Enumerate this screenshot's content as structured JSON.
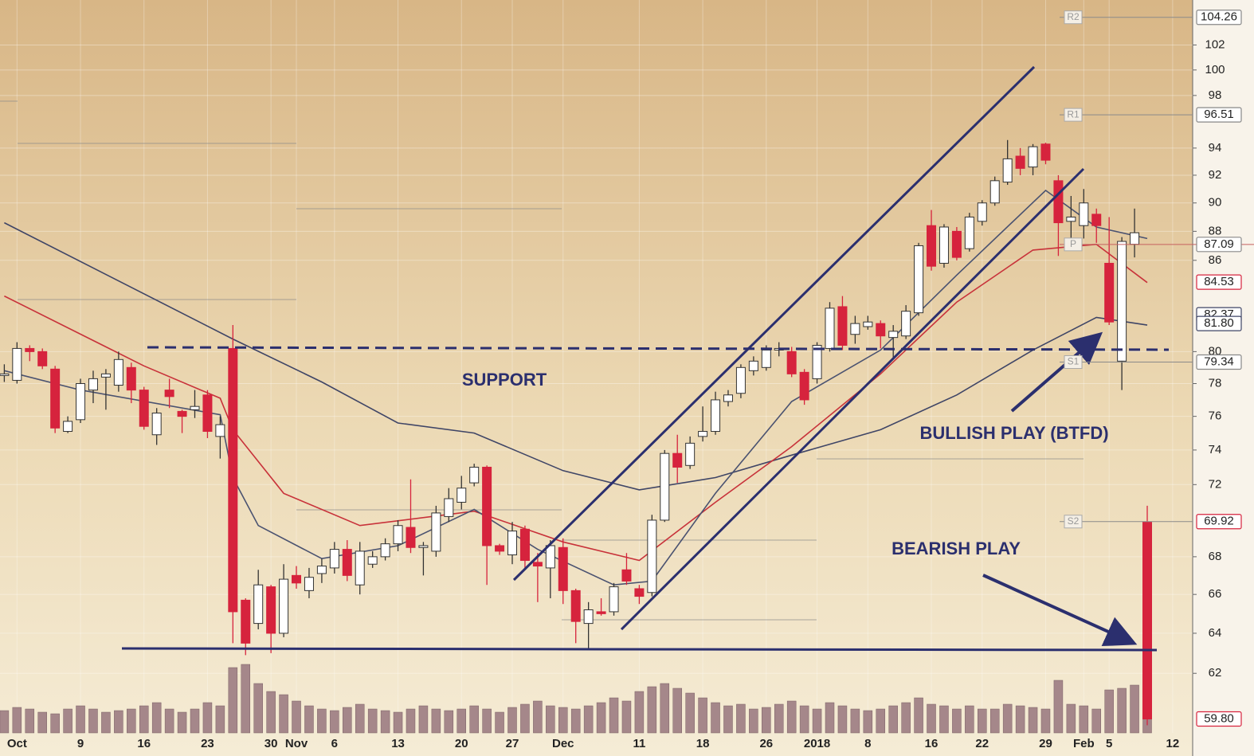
{
  "chart_data": {
    "type": "candlestick",
    "categories": [
      null,
      "Oct",
      null,
      null,
      null,
      null,
      "9",
      null,
      null,
      null,
      null,
      "16",
      null,
      null,
      null,
      null,
      "23",
      null,
      null,
      null,
      null,
      "30",
      null,
      "Nov",
      null,
      null,
      "6",
      null,
      null,
      null,
      null,
      "13",
      null,
      null,
      null,
      null,
      "20",
      null,
      null,
      null,
      "27",
      null,
      null,
      null,
      "Dec",
      null,
      null,
      null,
      null,
      null,
      "11",
      null,
      null,
      null,
      null,
      "18",
      null,
      null,
      null,
      null,
      "26",
      null,
      null,
      null,
      "2018",
      null,
      null,
      null,
      "8",
      null,
      null,
      null,
      null,
      "16",
      null,
      null,
      null,
      "22",
      null,
      null,
      null,
      null,
      "29",
      null,
      null,
      "Feb",
      null,
      "5",
      null,
      null,
      null,
      null,
      "12"
    ],
    "open": [
      78.5,
      78.2,
      80.2,
      80.0,
      78.9,
      75.1,
      75.8,
      77.6,
      78.4,
      77.9,
      79.0,
      77.6,
      74.9,
      77.6,
      76.3,
      76.4,
      77.3,
      74.8,
      80.2,
      65.7,
      64.5,
      66.4,
      64.0,
      67.0,
      66.2,
      67.1,
      67.4,
      68.4,
      66.5,
      67.6,
      68.0,
      68.7,
      69.6,
      68.5,
      68.3,
      70.2,
      71.0,
      72.1,
      73.0,
      68.6,
      68.1,
      69.5,
      67.7,
      67.4,
      68.5,
      66.2,
      64.5,
      65.1,
      65.1,
      67.3,
      66.3,
      66.1,
      70.0,
      73.8,
      73.1,
      74.8,
      75.1,
      76.9,
      77.4,
      78.8,
      79.0,
      80.1,
      80.0,
      78.7,
      78.3,
      80.2,
      82.9,
      81.1,
      81.6,
      81.8,
      80.9,
      81.0,
      82.5,
      88.4,
      85.8,
      88.0,
      86.8,
      88.7,
      90.0,
      91.5,
      93.4,
      92.6,
      94.3,
      91.6,
      88.7,
      88.4,
      89.2,
      85.8,
      79.4,
      87.1,
      69.9,
      null,
      null
    ],
    "high": [
      79.2,
      80.6,
      80.4,
      80.2,
      79.1,
      76.0,
      78.3,
      78.8,
      78.9,
      80.0,
      79.3,
      77.8,
      76.5,
      78.3,
      76.4,
      77.6,
      77.6,
      76.0,
      81.7,
      65.8,
      67.3,
      66.5,
      67.6,
      67.5,
      67.4,
      67.9,
      68.8,
      68.9,
      68.8,
      68.3,
      69.0,
      70.0,
      72.3,
      68.8,
      70.8,
      71.8,
      72.5,
      73.2,
      73.1,
      68.7,
      69.9,
      69.7,
      68.2,
      68.9,
      69.0,
      66.3,
      65.6,
      65.8,
      66.6,
      68.2,
      66.5,
      70.3,
      74.0,
      74.9,
      74.8,
      76.6,
      77.5,
      77.6,
      79.2,
      79.7,
      80.4,
      80.6,
      80.3,
      78.9,
      80.6,
      83.2,
      83.6,
      82.3,
      82.3,
      82.0,
      81.7,
      83.0,
      87.2,
      89.5,
      88.5,
      88.3,
      89.3,
      90.2,
      91.9,
      94.6,
      94.0,
      94.3,
      94.4,
      92.0,
      90.5,
      91.0,
      89.6,
      89.0,
      87.6,
      89.6,
      70.8,
      null,
      null
    ],
    "low": [
      78.1,
      78.0,
      79.4,
      78.9,
      75.0,
      75.0,
      75.6,
      76.8,
      76.4,
      77.5,
      76.8,
      75.2,
      74.3,
      76.5,
      75.0,
      75.9,
      74.7,
      73.5,
      63.5,
      62.9,
      64.2,
      63.0,
      63.8,
      66.3,
      65.8,
      66.6,
      67.1,
      66.7,
      66.0,
      67.4,
      67.8,
      68.3,
      68.2,
      67.0,
      68.0,
      69.9,
      70.6,
      71.9,
      66.5,
      68.1,
      67.6,
      67.3,
      65.6,
      65.8,
      65.5,
      63.5,
      63.2,
      64.9,
      64.9,
      66.5,
      65.5,
      65.9,
      69.9,
      72.1,
      72.9,
      74.5,
      74.9,
      76.6,
      77.1,
      78.5,
      78.8,
      79.7,
      78.4,
      76.7,
      78.0,
      80.0,
      80.1,
      80.5,
      81.4,
      80.2,
      79.6,
      80.8,
      82.3,
      85.3,
      85.5,
      86.0,
      86.6,
      88.4,
      89.8,
      91.3,
      92.0,
      92.0,
      92.8,
      86.3,
      87.1,
      87.5,
      87.2,
      81.7,
      77.6,
      86.2,
      59.5,
      null,
      null
    ],
    "close": [
      78.6,
      80.2,
      80.0,
      79.1,
      75.3,
      75.7,
      78.0,
      78.3,
      78.6,
      79.5,
      77.6,
      75.4,
      76.2,
      77.2,
      76.0,
      76.6,
      75.1,
      75.5,
      65.1,
      63.5,
      66.5,
      64.0,
      66.8,
      66.6,
      66.9,
      67.5,
      68.4,
      67.0,
      68.3,
      68.0,
      68.7,
      69.7,
      68.5,
      68.6,
      70.4,
      71.2,
      71.8,
      73.0,
      68.6,
      68.3,
      69.4,
      67.8,
      67.5,
      68.6,
      66.2,
      64.6,
      65.2,
      65.0,
      66.4,
      66.7,
      65.9,
      70.0,
      73.8,
      73.0,
      74.4,
      75.1,
      77.0,
      77.3,
      79.0,
      79.4,
      80.1,
      80.2,
      78.6,
      77.0,
      80.4,
      82.8,
      80.4,
      81.8,
      81.9,
      81.0,
      81.3,
      82.6,
      87.0,
      85.6,
      88.3,
      86.2,
      89.0,
      90.0,
      91.6,
      93.2,
      92.5,
      94.1,
      93.1,
      88.6,
      89.0,
      90.0,
      88.4,
      81.9,
      87.3,
      87.9,
      59.8,
      null,
      null
    ],
    "volume": [
      28,
      32,
      30,
      26,
      24,
      30,
      34,
      30,
      26,
      28,
      30,
      34,
      38,
      30,
      26,
      30,
      38,
      34,
      82,
      86,
      62,
      52,
      48,
      40,
      34,
      30,
      28,
      32,
      36,
      30,
      28,
      26,
      30,
      34,
      30,
      28,
      30,
      34,
      30,
      26,
      32,
      36,
      40,
      34,
      32,
      30,
      34,
      38,
      44,
      40,
      52,
      58,
      62,
      56,
      50,
      44,
      38,
      34,
      36,
      30,
      32,
      36,
      40,
      34,
      30,
      38,
      34,
      30,
      28,
      30,
      34,
      38,
      44,
      36,
      34,
      30,
      34,
      30,
      30,
      36,
      34,
      32,
      30,
      66,
      36,
      34,
      30,
      54,
      56,
      60,
      40,
      null,
      null
    ],
    "vlim": [
      0,
      200
    ],
    "up_color": "#ffffff",
    "down_color": "#d6233d",
    "volume_color": "#a5878a",
    "moving_averages": [
      {
        "color": "#3f4566",
        "x": [
          0,
          18,
          25,
          31,
          37,
          44,
          50,
          56,
          62,
          69,
          75,
          81,
          86,
          90
        ],
        "values": [
          88.6,
          80.8,
          78.1,
          75.6,
          75.0,
          72.8,
          71.7,
          72.4,
          73.7,
          75.2,
          77.3,
          80.1,
          82.2,
          81.7
        ]
      },
      {
        "color": "#c8323a",
        "x": [
          0,
          11,
          17,
          18,
          22,
          28,
          37,
          44,
          50,
          56,
          62,
          69,
          75,
          81,
          86,
          90
        ],
        "values": [
          83.6,
          79.1,
          77.1,
          75.2,
          71.5,
          69.7,
          70.5,
          68.8,
          67.8,
          71.0,
          74.2,
          78.6,
          83.2,
          86.7,
          87.1,
          84.5
        ]
      },
      {
        "color": "#4a5270",
        "x": [
          0,
          6,
          17,
          18,
          20,
          25,
          31,
          37,
          42,
          48,
          51,
          56,
          62,
          69,
          75,
          82,
          86,
          90
        ],
        "values": [
          78.8,
          77.6,
          76.1,
          72.4,
          69.7,
          67.9,
          68.6,
          70.6,
          68.4,
          66.5,
          66.7,
          71.5,
          76.9,
          80.1,
          85.0,
          90.9,
          88.3,
          87.5
        ]
      }
    ],
    "ylim": [
      58.4,
      105.7
    ],
    "log_scale": true,
    "yticks": [
      62,
      64,
      66,
      68,
      72,
      74,
      76,
      78,
      80,
      86,
      88,
      90,
      92,
      94,
      98,
      100,
      102
    ],
    "price_labels": [
      {
        "value": 104.26,
        "label": "104.26",
        "pivot": "R2",
        "color": "#888888"
      },
      {
        "value": 96.51,
        "label": "96.51",
        "pivot": "R1",
        "color": "#888888"
      },
      {
        "value": 87.09,
        "label": "87.09",
        "pivot": "P",
        "color": "#888888"
      },
      {
        "value": 84.53,
        "label": "84.53",
        "color": "#d6233d"
      },
      {
        "value": 82.37,
        "label": "82.37",
        "color": "#3f4566"
      },
      {
        "value": 81.8,
        "label": "81.80",
        "color": "#3f4566"
      },
      {
        "value": 79.34,
        "label": "79.34",
        "pivot": "S1",
        "color": "#888888"
      },
      {
        "value": 69.92,
        "label": "69.92",
        "pivot": "S2",
        "color": "#d6233d"
      },
      {
        "value": 59.8,
        "label": "59.80",
        "color": "#d6233d"
      }
    ],
    "annotations": [
      "SUPPORT",
      "BULLISH PLAY (BTFD)",
      "BEARISH PLAY"
    ]
  }
}
